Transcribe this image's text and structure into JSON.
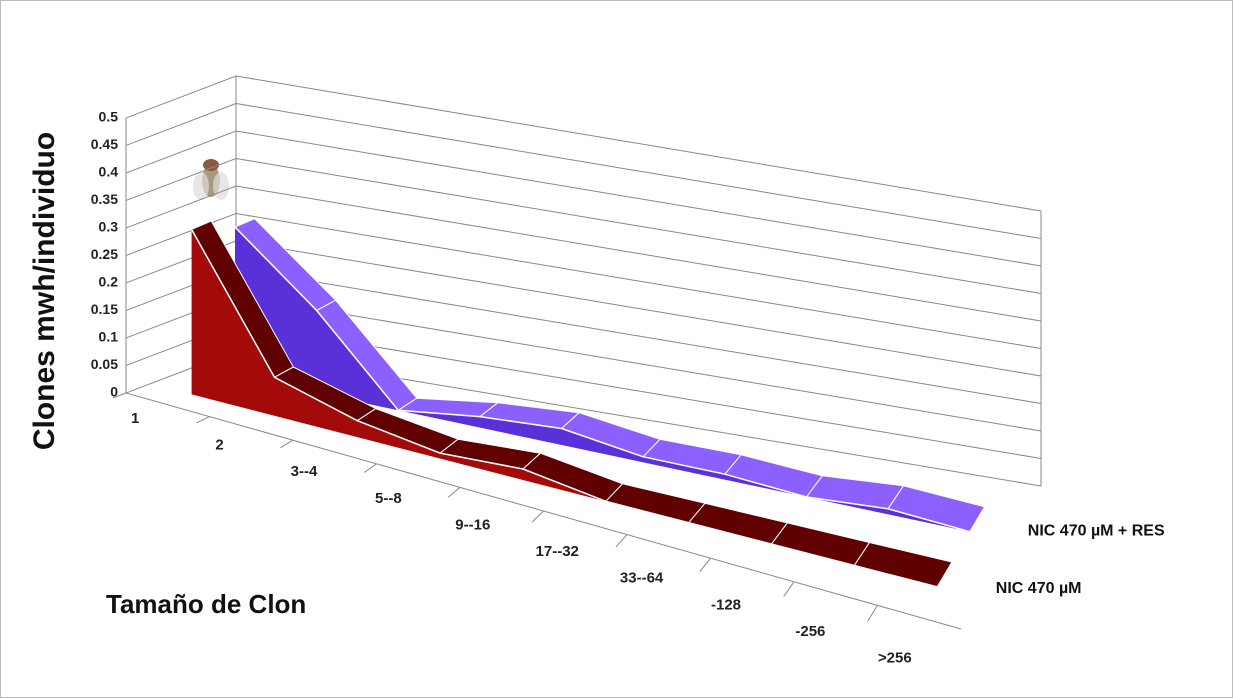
{
  "chart_data": {
    "type": "ribbon3d",
    "y_label": "Clones mwh/individuo",
    "x_label": "Tamaño de Clon",
    "categories": [
      "1",
      "2",
      "3--4",
      "5--8",
      "9--16",
      "17--32",
      "33--64",
      "-128",
      "-256",
      ">256"
    ],
    "series": [
      {
        "name": "NIC 470 µM",
        "color": "#8b0000",
        "values": [
          0.3,
          0.07,
          0.03,
          0.01,
          0.02,
          0,
          0,
          0,
          0,
          0
        ]
      },
      {
        "name": "NIC 470 µM + RES",
        "color": "#6a3cf0",
        "values": [
          0.27,
          0.15,
          0.0,
          0.02,
          0.03,
          0.01,
          0.01,
          0,
          0.01,
          0
        ]
      }
    ],
    "ylim": [
      0,
      0.5
    ],
    "yticks": [
      0,
      0.05,
      0.1,
      0.15,
      0.2,
      0.25,
      0.3,
      0.35,
      0.4,
      0.45,
      0.5
    ],
    "grid": true
  }
}
